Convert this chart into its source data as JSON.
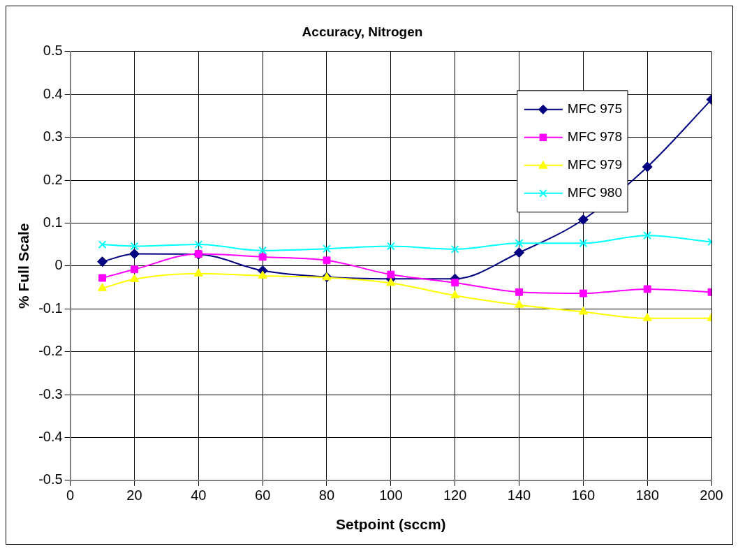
{
  "chart_data": {
    "type": "line",
    "title": "Accuracy, Nitrogen",
    "xlabel": "Setpoint (sccm)",
    "ylabel": "% Full Scale",
    "x": [
      10,
      20,
      40,
      60,
      80,
      100,
      120,
      140,
      160,
      180,
      200
    ],
    "series": [
      {
        "name": "MFC 975",
        "color": "#000080",
        "marker": "diamond",
        "values": [
          0.01,
          0.028,
          0.027,
          -0.011,
          -0.026,
          -0.03,
          -0.03,
          0.031,
          0.108,
          0.231,
          0.388
        ]
      },
      {
        "name": "MFC 978",
        "color": "#ff00ff",
        "marker": "square",
        "values": [
          -0.028,
          -0.008,
          0.028,
          0.021,
          0.013,
          -0.02,
          -0.039,
          -0.061,
          -0.064,
          -0.054,
          -0.061
        ]
      },
      {
        "name": "MFC 979",
        "color": "#ffff00",
        "marker": "triangle",
        "values": [
          -0.052,
          -0.031,
          -0.018,
          -0.023,
          -0.027,
          -0.04,
          -0.069,
          -0.091,
          -0.107,
          -0.122,
          -0.122
        ]
      },
      {
        "name": "MFC 980",
        "color": "#00ffff",
        "marker": "cross",
        "values": [
          0.05,
          0.046,
          0.05,
          0.036,
          0.04,
          0.046,
          0.039,
          0.053,
          0.053,
          0.071,
          0.056
        ]
      }
    ],
    "xlim": [
      0,
      200
    ],
    "xticks": [
      0,
      20,
      40,
      60,
      80,
      100,
      120,
      140,
      160,
      180,
      200
    ],
    "ylim": [
      -0.5,
      0.5
    ],
    "yticks": [
      {
        "value": -0.5,
        "label": "-0.5"
      },
      {
        "value": -0.4,
        "label": "-0.4"
      },
      {
        "value": -0.3,
        "label": "-0.3"
      },
      {
        "value": -0.2,
        "label": "-0.2"
      },
      {
        "value": -0.1,
        "label": "-0.1"
      },
      0,
      {
        "value": 0.1,
        "label": "0.1"
      },
      {
        "value": 0.2,
        "label": "0.2"
      },
      {
        "value": 0.3,
        "label": "0.3"
      },
      {
        "value": 0.4,
        "label": "0.4"
      },
      {
        "value": 0.5,
        "label": "0.5"
      }
    ],
    "grid": true,
    "legend": "top right",
    "line_style": "solid"
  }
}
